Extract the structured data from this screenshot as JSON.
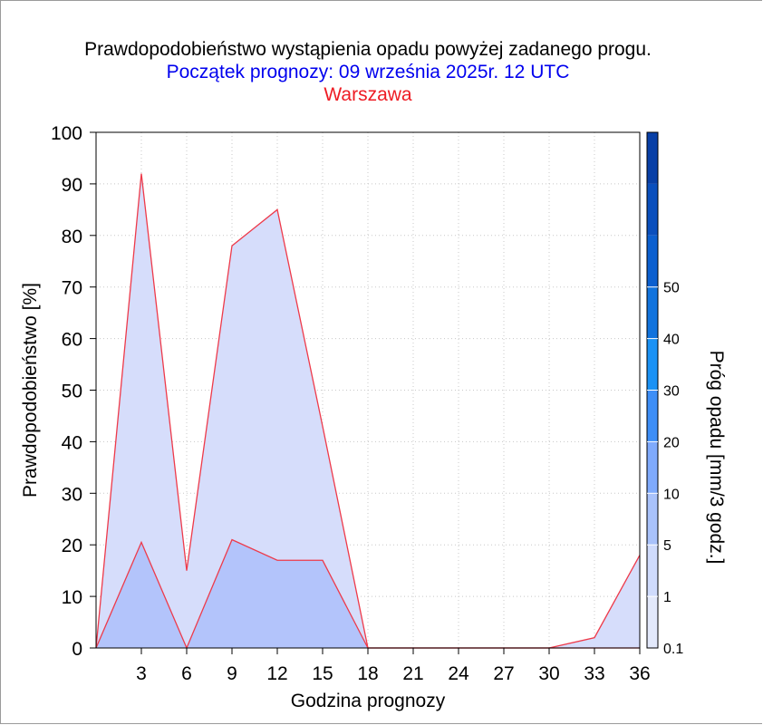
{
  "chart_data": {
    "type": "area",
    "title": "Prawdopodobieństwo wystąpienia opadu powyżej zadanego progu.",
    "subtitle": "Początek prognozy: 09 września 2025r. 12 UTC",
    "location": "Warszawa",
    "xlabel": "Godzina prognozy",
    "ylabel": "Prawdopodobieństwo [%]",
    "xlim": [
      0,
      36
    ],
    "ylim": [
      0,
      100
    ],
    "x_ticks": [
      "3",
      "6",
      "9",
      "12",
      "15",
      "18",
      "21",
      "24",
      "27",
      "30",
      "33",
      "36"
    ],
    "y_ticks": [
      "0",
      "10",
      "20",
      "30",
      "40",
      "50",
      "60",
      "70",
      "80",
      "90",
      "100"
    ],
    "x": [
      0,
      3,
      6,
      9,
      12,
      15,
      18,
      21,
      24,
      27,
      30,
      33,
      36
    ],
    "series": [
      {
        "threshold": "0.1",
        "fill": "#d6ddfb",
        "values": [
          0,
          92,
          15,
          78,
          85,
          43,
          0,
          0,
          0,
          0,
          0,
          2,
          18
        ]
      },
      {
        "threshold": "1",
        "fill": "#b3c4fb",
        "values": [
          0,
          20.5,
          0,
          21,
          17,
          17,
          0,
          0,
          0,
          0,
          0,
          0,
          0
        ]
      }
    ],
    "line_color": "#ee3a4a",
    "grid": true,
    "colorbar": {
      "label": "Próg opadu [mm/3 godz.]",
      "tick_labels": [
        "0.1",
        "1",
        "5",
        "10",
        "20",
        "30",
        "40",
        "50"
      ],
      "colors": [
        "#e3e9fb",
        "#cfdbfc",
        "#a9c2fb",
        "#7faafc",
        "#3d8ef7",
        "#1a92f5",
        "#1173dd",
        "#0b5fcf",
        "#0a4fbd",
        "#083fa6"
      ]
    }
  }
}
